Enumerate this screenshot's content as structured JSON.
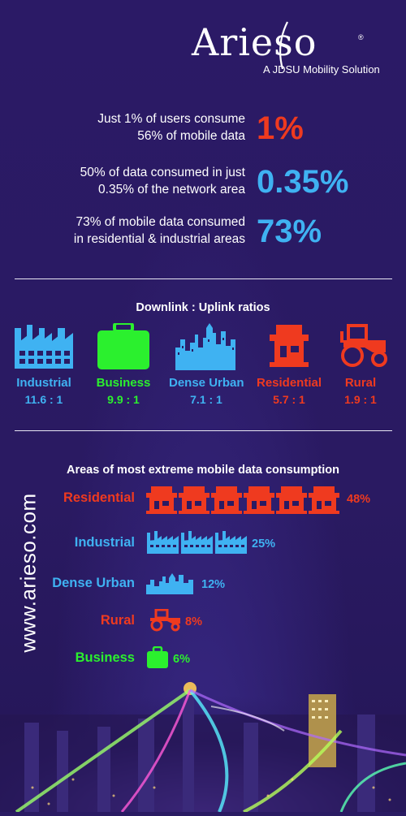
{
  "brand": {
    "name": "Arieso",
    "registered": "®",
    "tagline": "A JDSU Mobility Solution"
  },
  "stats": [
    {
      "text_line1": "Just 1% of users consume",
      "text_line2": "56% of mobile data",
      "big": "1%",
      "color": "#ef3a1f"
    },
    {
      "text_line1": "50% of data consumed in just",
      "text_line2": "0.35% of the network area",
      "big": "0.35%",
      "color": "#3fb2f2"
    },
    {
      "text_line1": "73%  of mobile data consumed",
      "text_line2": "in residential & industrial areas",
      "big": "73%",
      "color": "#3fb2f2"
    }
  ],
  "ratios": {
    "title": "Downlink : Uplink ratios",
    "items": [
      {
        "name": "Industrial",
        "value": "11.6 : 1",
        "color": "#3fb2f2",
        "icon": "factory-icon"
      },
      {
        "name": "Business",
        "value": "9.9 : 1",
        "color": "#2bf02e",
        "icon": "briefcase-icon"
      },
      {
        "name": "Dense Urban",
        "value": "7.1 : 1",
        "color": "#3fb2f2",
        "icon": "skyline-icon"
      },
      {
        "name": "Residential",
        "value": "5.7 : 1",
        "color": "#ef3a1f",
        "icon": "house-icon"
      },
      {
        "name": "Rural",
        "value": "1.9 : 1",
        "color": "#ef3a1f",
        "icon": "tractor-icon"
      }
    ]
  },
  "consumption": {
    "title": "Areas of most extreme mobile data consumption",
    "items": [
      {
        "name": "Residential",
        "pct": "48%",
        "value": 48,
        "color": "#ef3a1f",
        "icon": "house-icon",
        "count": 6
      },
      {
        "name": "Industrial",
        "pct": "25%",
        "value": 25,
        "color": "#3fb2f2",
        "icon": "factory-icon",
        "count": 3
      },
      {
        "name": "Dense Urban",
        "pct": "12%",
        "value": 12,
        "color": "#3fb2f2",
        "icon": "skyline-icon",
        "count": 1
      },
      {
        "name": "Rural",
        "pct": "8%",
        "value": 8,
        "color": "#ef3a1f",
        "icon": "tractor-icon",
        "count": 1
      },
      {
        "name": "Business",
        "pct": "6%",
        "value": 6,
        "color": "#2bf02e",
        "icon": "briefcase-icon",
        "count": 1
      }
    ]
  },
  "website": "www.arieso.com"
}
